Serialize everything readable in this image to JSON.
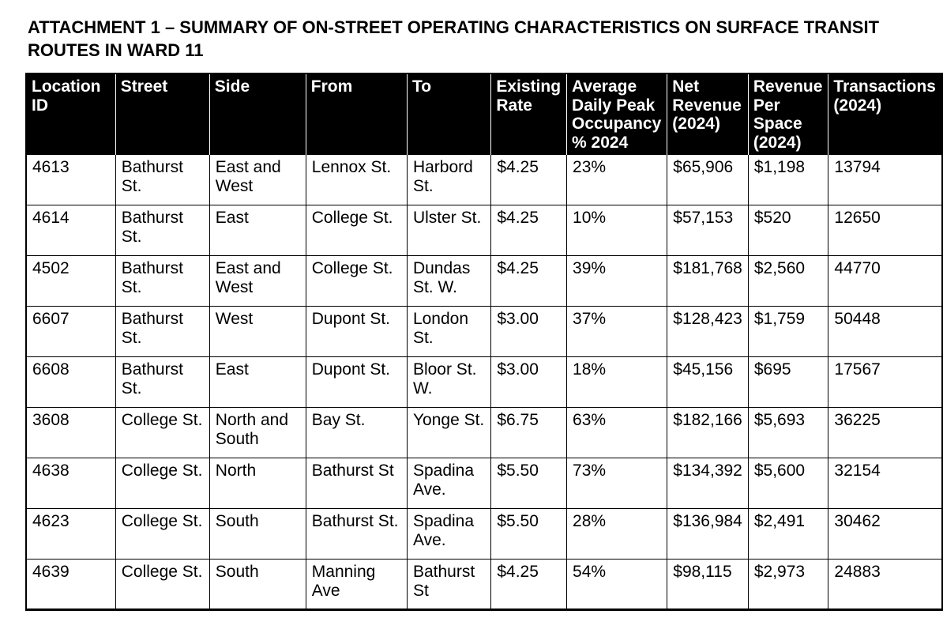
{
  "title": "ATTACHMENT 1 – SUMMARY OF ON-STREET OPERATING CHARACTERISTICS ON SURFACE TRANSIT ROUTES IN WARD 11",
  "table": {
    "columns": [
      {
        "id": "location-id",
        "label": "Location ID"
      },
      {
        "id": "street",
        "label": "Street"
      },
      {
        "id": "side",
        "label": "Side"
      },
      {
        "id": "from",
        "label": "From"
      },
      {
        "id": "to",
        "label": "To"
      },
      {
        "id": "existing-rate",
        "label": "Existing Rate"
      },
      {
        "id": "avg-daily-peak-occupancy",
        "label": "Average Daily Peak Occupancy % 2024"
      },
      {
        "id": "net-revenue",
        "label": "Net Revenue (2024)"
      },
      {
        "id": "revenue-per-space",
        "label": "Revenue Per Space (2024)"
      },
      {
        "id": "transactions",
        "label": "Transactions (2024)"
      }
    ],
    "rows": [
      [
        "4613",
        "Bathurst St.",
        "East and West",
        "Lennox St.",
        "Harbord St.",
        "$4.25",
        "23%",
        "$65,906",
        "$1,198",
        "13794"
      ],
      [
        "4614",
        "Bathurst St.",
        "East",
        "College St.",
        "Ulster St.",
        "$4.25",
        "10%",
        "$57,153",
        "$520",
        "12650"
      ],
      [
        "4502",
        "Bathurst St.",
        "East and West",
        "College St.",
        "Dundas St. W.",
        "$4.25",
        "39%",
        "$181,768",
        "$2,560",
        "44770"
      ],
      [
        "6607",
        "Bathurst St.",
        "West",
        "Dupont St.",
        "London St.",
        "$3.00",
        "37%",
        "$128,423",
        "$1,759",
        "50448"
      ],
      [
        "6608",
        "Bathurst St.",
        "East",
        "Dupont St.",
        "Bloor St. W.",
        "$3.00",
        "18%",
        "$45,156",
        "$695",
        "17567"
      ],
      [
        "3608",
        "College St.",
        "North and South",
        "Bay St.",
        "Yonge St.",
        "$6.75",
        "63%",
        "$182,166",
        "$5,693",
        "36225"
      ],
      [
        "4638",
        "College St.",
        "North",
        "Bathurst St",
        "Spadina Ave.",
        "$5.50",
        "73%",
        "$134,392",
        "$5,600",
        "32154"
      ],
      [
        "4623",
        "College St.",
        "South",
        "Bathurst St.",
        "Spadina Ave.",
        "$5.50",
        "28%",
        "$136,984",
        "$2,491",
        "30462"
      ],
      [
        "4639",
        "College St.",
        "South",
        "Manning Ave",
        "Bathurst St",
        "$4.25",
        "54%",
        "$98,115",
        "$2,973",
        "24883"
      ]
    ]
  },
  "colors": {
    "page_background": "#ffffff",
    "body_text": "#000000",
    "header_background": "#000000",
    "header_text": "#ffffff",
    "grid_border": "#000000"
  }
}
